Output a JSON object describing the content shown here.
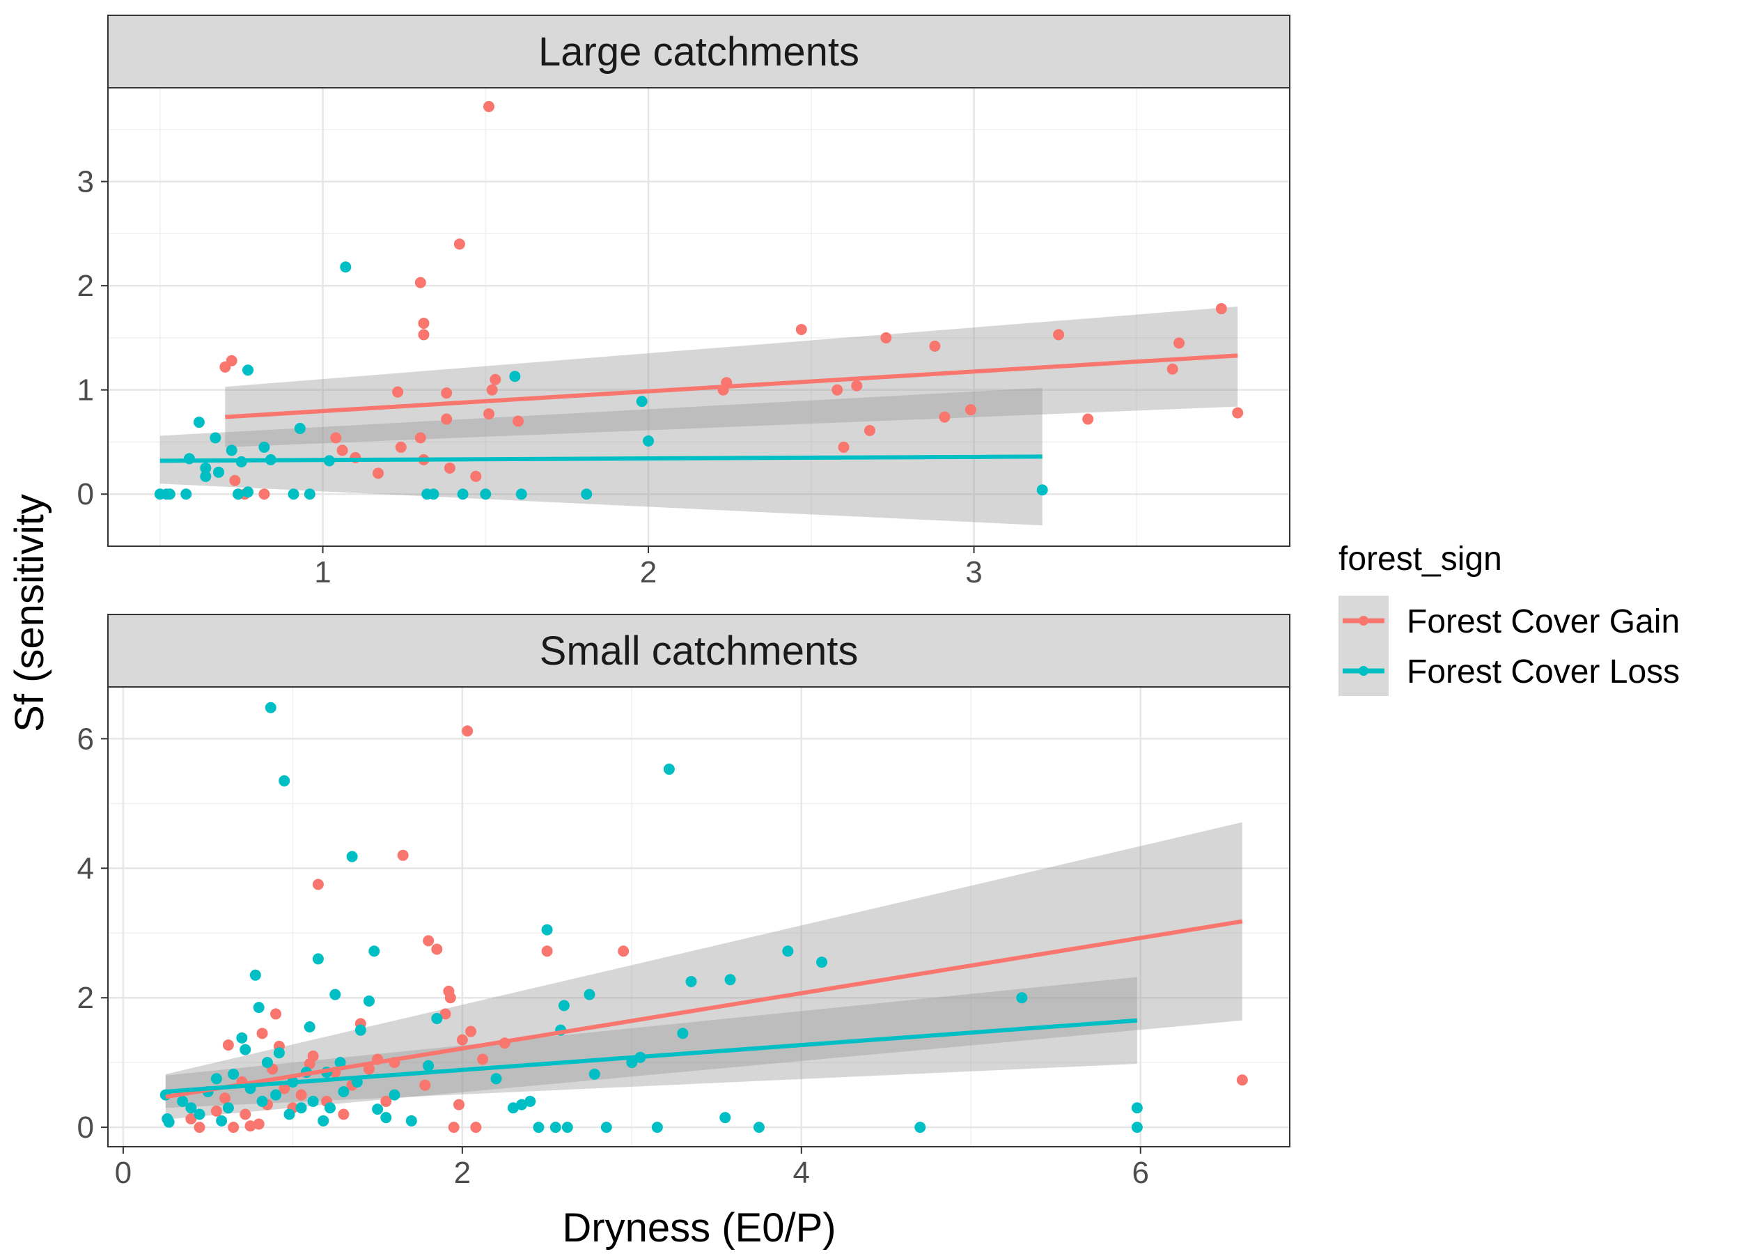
{
  "chart_data": {
    "type": "scatter",
    "xlabel": "Dryness (E0/P)",
    "ylabel": "Sf (sensitivity",
    "legend": {
      "title": "forest_sign",
      "position": "right",
      "entries": [
        {
          "name": "Forest Cover Gain",
          "color": "#F8766D"
        },
        {
          "name": "Forest Cover Loss",
          "color": "#00BFC4"
        }
      ]
    },
    "grid": true,
    "panels": [
      {
        "title": "Large catchments",
        "xlim": [
          0.34,
          3.97
        ],
        "ylim": [
          -0.5,
          3.9
        ],
        "xticks": [
          1,
          2,
          3
        ],
        "xtick_labels": [
          "1",
          "2",
          "3"
        ],
        "yticks": [
          0,
          1,
          2,
          3
        ],
        "ytick_labels": [
          "0",
          "1",
          "2",
          "3"
        ],
        "series": [
          {
            "name": "Forest Cover Gain",
            "color": "#F8766D",
            "points": [
              [
                0.7,
                1.22
              ],
              [
                0.72,
                1.28
              ],
              [
                0.73,
                0.13
              ],
              [
                0.74,
                0.0
              ],
              [
                0.76,
                0.0
              ],
              [
                0.82,
                0.0
              ],
              [
                1.04,
                0.54
              ],
              [
                1.06,
                0.42
              ],
              [
                1.1,
                0.35
              ],
              [
                1.17,
                0.2
              ],
              [
                1.23,
                0.98
              ],
              [
                1.24,
                0.45
              ],
              [
                1.3,
                2.03
              ],
              [
                1.3,
                0.54
              ],
              [
                1.31,
                1.64
              ],
              [
                1.31,
                1.53
              ],
              [
                1.31,
                0.33
              ],
              [
                1.38,
                0.97
              ],
              [
                1.38,
                0.72
              ],
              [
                1.39,
                0.25
              ],
              [
                1.42,
                2.4
              ],
              [
                1.47,
                0.17
              ],
              [
                1.51,
                3.72
              ],
              [
                1.51,
                0.77
              ],
              [
                1.52,
                1.0
              ],
              [
                1.53,
                1.1
              ],
              [
                1.6,
                0.7
              ],
              [
                2.23,
                1.0
              ],
              [
                2.24,
                1.07
              ],
              [
                2.47,
                1.58
              ],
              [
                2.58,
                1.0
              ],
              [
                2.6,
                0.45
              ],
              [
                2.64,
                1.04
              ],
              [
                2.68,
                0.61
              ],
              [
                2.73,
                1.5
              ],
              [
                2.88,
                1.42
              ],
              [
                2.91,
                0.74
              ],
              [
                2.99,
                0.81
              ],
              [
                3.26,
                1.53
              ],
              [
                3.35,
                0.72
              ],
              [
                3.61,
                1.2
              ],
              [
                3.63,
                1.45
              ],
              [
                3.76,
                1.78
              ],
              [
                3.81,
                0.78
              ]
            ],
            "trend": {
              "x": [
                0.7,
                3.81
              ],
              "y": [
                0.74,
                1.33
              ],
              "ci_low": [
                0.45,
                0.84
              ],
              "ci_high": [
                1.03,
                1.8
              ]
            }
          },
          {
            "name": "Forest Cover Loss",
            "color": "#00BFC4",
            "points": [
              [
                0.5,
                0.0
              ],
              [
                0.52,
                0.0
              ],
              [
                0.53,
                0.0
              ],
              [
                0.58,
                0.0
              ],
              [
                0.59,
                0.34
              ],
              [
                0.62,
                0.69
              ],
              [
                0.64,
                0.25
              ],
              [
                0.64,
                0.17
              ],
              [
                0.67,
                0.54
              ],
              [
                0.68,
                0.21
              ],
              [
                0.72,
                0.42
              ],
              [
                0.74,
                0.0
              ],
              [
                0.75,
                0.31
              ],
              [
                0.77,
                1.19
              ],
              [
                0.77,
                0.02
              ],
              [
                0.82,
                0.45
              ],
              [
                0.84,
                0.33
              ],
              [
                0.91,
                0.0
              ],
              [
                0.93,
                0.63
              ],
              [
                0.96,
                0.0
              ],
              [
                1.02,
                0.32
              ],
              [
                1.07,
                2.18
              ],
              [
                1.32,
                0.0
              ],
              [
                1.34,
                0.0
              ],
              [
                1.43,
                0.0
              ],
              [
                1.5,
                0.0
              ],
              [
                1.59,
                1.13
              ],
              [
                1.61,
                0.0
              ],
              [
                1.81,
                0.0
              ],
              [
                1.98,
                0.89
              ],
              [
                2.0,
                0.51
              ],
              [
                3.21,
                0.04
              ]
            ],
            "trend": {
              "x": [
                0.5,
                3.21
              ],
              "y": [
                0.32,
                0.36
              ],
              "ci_low": [
                0.1,
                -0.3
              ],
              "ci_high": [
                0.56,
                1.02
              ]
            }
          }
        ]
      },
      {
        "title": "Small catchments",
        "xlim": [
          -0.09,
          6.88
        ],
        "ylim": [
          -0.3,
          6.8
        ],
        "xticks": [
          0,
          2,
          4,
          6
        ],
        "xtick_labels": [
          "0",
          "2",
          "4",
          "6"
        ],
        "yticks": [
          0,
          2,
          4,
          6
        ],
        "ytick_labels": [
          "0",
          "2",
          "4",
          "6"
        ],
        "series": [
          {
            "name": "Forest Cover Gain",
            "color": "#F8766D",
            "points": [
              [
                0.4,
                0.13
              ],
              [
                0.45,
                0.0
              ],
              [
                0.55,
                0.25
              ],
              [
                0.6,
                0.45
              ],
              [
                0.62,
                1.27
              ],
              [
                0.65,
                0.0
              ],
              [
                0.7,
                0.7
              ],
              [
                0.72,
                0.2
              ],
              [
                0.75,
                0.02
              ],
              [
                0.8,
                0.05
              ],
              [
                0.82,
                1.45
              ],
              [
                0.85,
                0.35
              ],
              [
                0.88,
                0.9
              ],
              [
                0.9,
                1.75
              ],
              [
                0.92,
                1.25
              ],
              [
                0.95,
                0.6
              ],
              [
                1.0,
                0.3
              ],
              [
                1.05,
                0.5
              ],
              [
                1.1,
                0.98
              ],
              [
                1.12,
                1.1
              ],
              [
                1.15,
                3.75
              ],
              [
                1.2,
                0.4
              ],
              [
                1.25,
                0.85
              ],
              [
                1.3,
                0.2
              ],
              [
                1.35,
                0.65
              ],
              [
                1.4,
                1.6
              ],
              [
                1.45,
                0.9
              ],
              [
                1.5,
                1.05
              ],
              [
                1.55,
                0.4
              ],
              [
                1.6,
                1.0
              ],
              [
                1.65,
                4.2
              ],
              [
                1.78,
                0.65
              ],
              [
                1.8,
                2.88
              ],
              [
                1.85,
                2.75
              ],
              [
                1.9,
                1.75
              ],
              [
                1.92,
                2.1
              ],
              [
                1.93,
                2.0
              ],
              [
                1.95,
                0.0
              ],
              [
                1.98,
                0.35
              ],
              [
                2.0,
                1.35
              ],
              [
                2.03,
                6.12
              ],
              [
                2.05,
                1.48
              ],
              [
                2.08,
                0.0
              ],
              [
                2.12,
                1.05
              ],
              [
                2.25,
                1.3
              ],
              [
                2.5,
                2.72
              ],
              [
                2.95,
                2.72
              ],
              [
                6.6,
                0.73
              ]
            ],
            "trend": {
              "x": [
                0.25,
                6.6
              ],
              "y": [
                0.47,
                3.18
              ],
              "ci_low": [
                0.12,
                1.65
              ],
              "ci_high": [
                0.82,
                4.71
              ]
            }
          },
          {
            "name": "Forest Cover Loss",
            "color": "#00BFC4",
            "points": [
              [
                0.25,
                0.5
              ],
              [
                0.26,
                0.13
              ],
              [
                0.27,
                0.08
              ],
              [
                0.35,
                0.4
              ],
              [
                0.4,
                0.3
              ],
              [
                0.45,
                0.2
              ],
              [
                0.5,
                0.55
              ],
              [
                0.55,
                0.75
              ],
              [
                0.58,
                0.1
              ],
              [
                0.62,
                0.3
              ],
              [
                0.65,
                0.82
              ],
              [
                0.7,
                1.38
              ],
              [
                0.72,
                1.2
              ],
              [
                0.75,
                0.6
              ],
              [
                0.78,
                2.35
              ],
              [
                0.8,
                1.85
              ],
              [
                0.82,
                0.4
              ],
              [
                0.85,
                1.0
              ],
              [
                0.87,
                6.48
              ],
              [
                0.9,
                0.5
              ],
              [
                0.92,
                1.15
              ],
              [
                0.95,
                5.35
              ],
              [
                0.98,
                0.2
              ],
              [
                1.0,
                0.7
              ],
              [
                1.05,
                0.3
              ],
              [
                1.08,
                0.85
              ],
              [
                1.1,
                1.55
              ],
              [
                1.12,
                0.4
              ],
              [
                1.15,
                2.6
              ],
              [
                1.18,
                0.1
              ],
              [
                1.2,
                0.85
              ],
              [
                1.22,
                0.3
              ],
              [
                1.25,
                2.05
              ],
              [
                1.28,
                1.0
              ],
              [
                1.3,
                0.55
              ],
              [
                1.35,
                4.18
              ],
              [
                1.38,
                0.7
              ],
              [
                1.4,
                1.5
              ],
              [
                1.45,
                1.95
              ],
              [
                1.48,
                2.72
              ],
              [
                1.5,
                0.28
              ],
              [
                1.55,
                0.15
              ],
              [
                1.6,
                0.5
              ],
              [
                1.7,
                0.1
              ],
              [
                1.8,
                0.95
              ],
              [
                1.85,
                1.68
              ],
              [
                2.2,
                0.75
              ],
              [
                2.3,
                0.3
              ],
              [
                2.35,
                0.35
              ],
              [
                2.4,
                0.4
              ],
              [
                2.45,
                0.0
              ],
              [
                2.5,
                3.05
              ],
              [
                2.55,
                0.0
              ],
              [
                2.58,
                1.5
              ],
              [
                2.6,
                1.88
              ],
              [
                2.62,
                0.0
              ],
              [
                2.75,
                2.05
              ],
              [
                2.78,
                0.82
              ],
              [
                2.85,
                0.0
              ],
              [
                3.0,
                1.0
              ],
              [
                3.05,
                1.08
              ],
              [
                3.15,
                0.0
              ],
              [
                3.22,
                5.53
              ],
              [
                3.3,
                1.45
              ],
              [
                3.35,
                2.25
              ],
              [
                3.55,
                0.15
              ],
              [
                3.58,
                2.28
              ],
              [
                3.75,
                0.0
              ],
              [
                3.92,
                2.72
              ],
              [
                4.12,
                2.55
              ],
              [
                4.7,
                0.0
              ],
              [
                5.3,
                2.0
              ],
              [
                5.98,
                0.3
              ],
              [
                5.98,
                0.0
              ]
            ],
            "trend": {
              "x": [
                0.25,
                5.98
              ],
              "y": [
                0.55,
                1.65
              ],
              "ci_low": [
                0.3,
                0.98
              ],
              "ci_high": [
                0.8,
                2.32
              ]
            }
          }
        ]
      }
    ]
  }
}
